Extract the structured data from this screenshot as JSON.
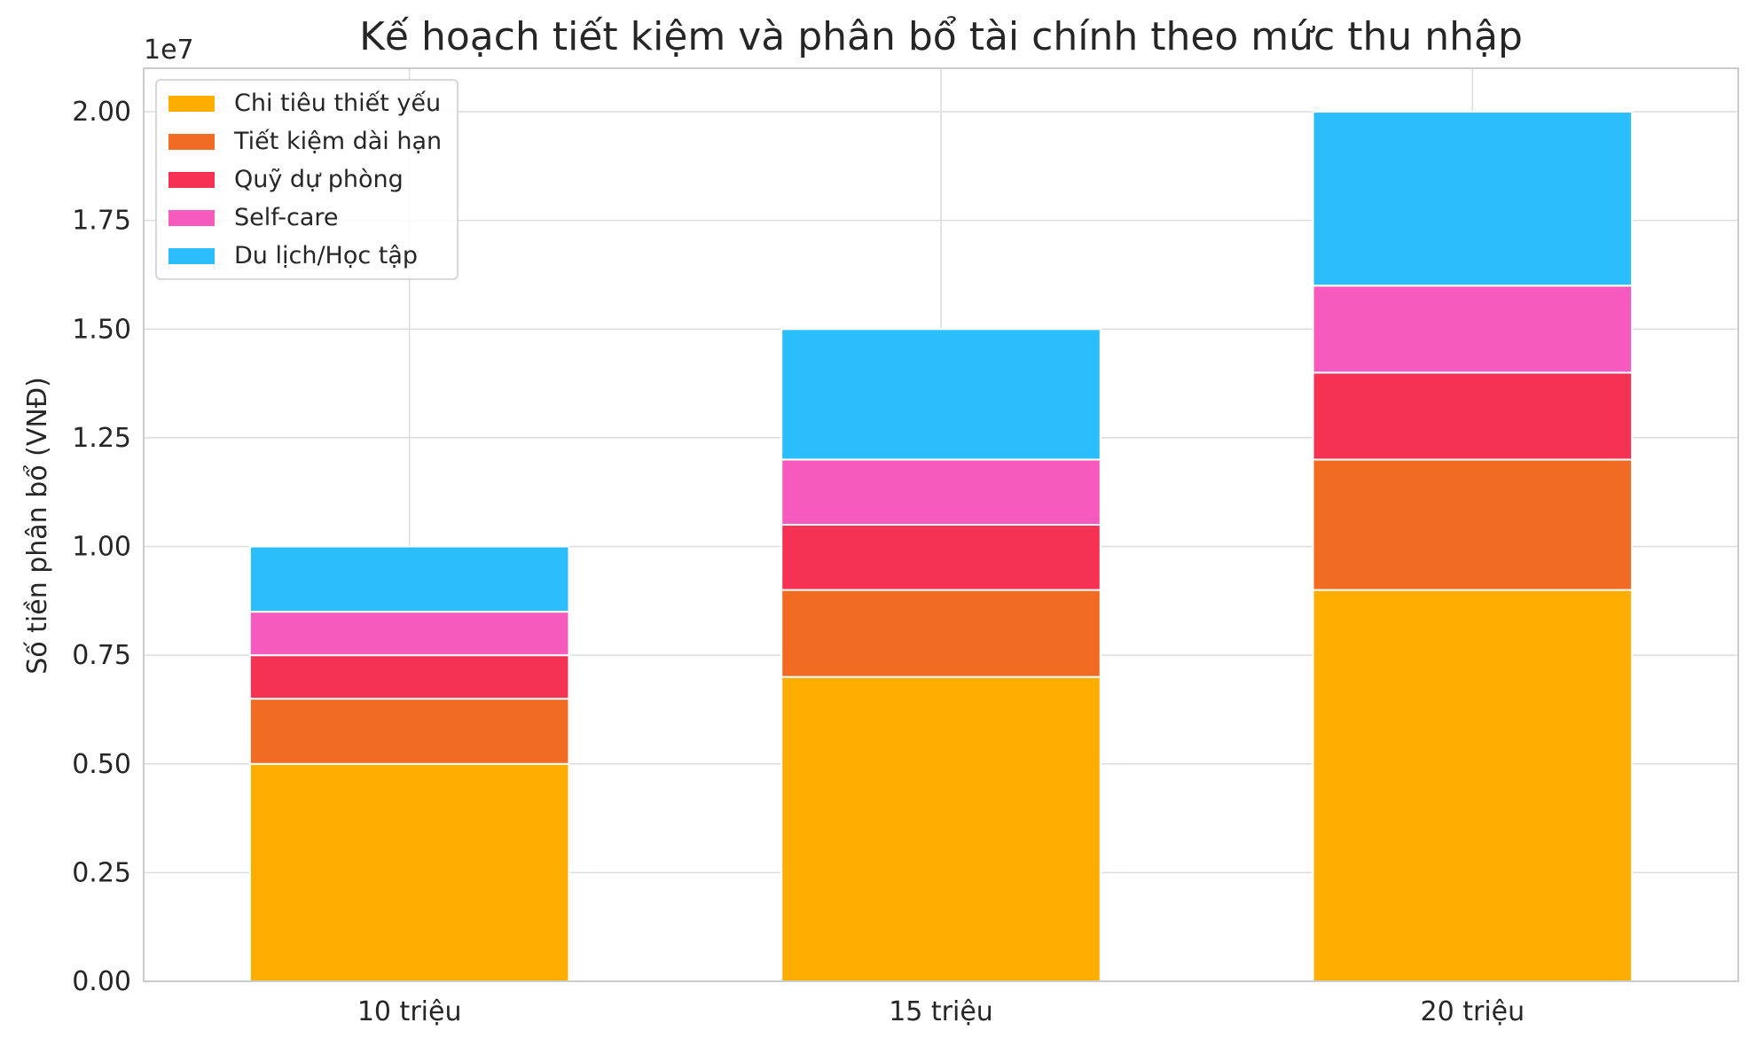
{
  "chart_data": {
    "type": "bar",
    "stacked": true,
    "title": "Kế hoạch tiết kiệm và phân bổ tài chính theo mức thu nhập",
    "xlabel": "",
    "ylabel": "Số tiền phân bổ (VNĐ)",
    "y_offset_text": "1e7",
    "ylim": [
      0,
      21000000
    ],
    "y_ticks": [
      0,
      2500000,
      5000000,
      7500000,
      10000000,
      12500000,
      15000000,
      17500000,
      20000000
    ],
    "y_tick_labels": [
      "0.00",
      "0.25",
      "0.50",
      "0.75",
      "1.00",
      "1.25",
      "1.50",
      "1.75",
      "2.00"
    ],
    "grid": true,
    "legend_position": "upper-left",
    "categories": [
      "10 triệu",
      "15 triệu",
      "20 triệu"
    ],
    "series": [
      {
        "name": "Chi tiêu thiết yếu",
        "color": "#FFAE00",
        "values": [
          5000000,
          7000000,
          9000000
        ]
      },
      {
        "name": "Tiết kiệm dài hạn",
        "color": "#F26B22",
        "values": [
          1500000,
          2000000,
          3000000
        ]
      },
      {
        "name": "Quỹ dự phòng",
        "color": "#F53253",
        "values": [
          1000000,
          1500000,
          2000000
        ]
      },
      {
        "name": "Self-care",
        "color": "#F75ABF",
        "values": [
          1000000,
          1500000,
          2000000
        ]
      },
      {
        "name": "Du lịch/Học tập",
        "color": "#2BBEFC",
        "values": [
          1500000,
          3000000,
          4000000
        ]
      }
    ]
  }
}
